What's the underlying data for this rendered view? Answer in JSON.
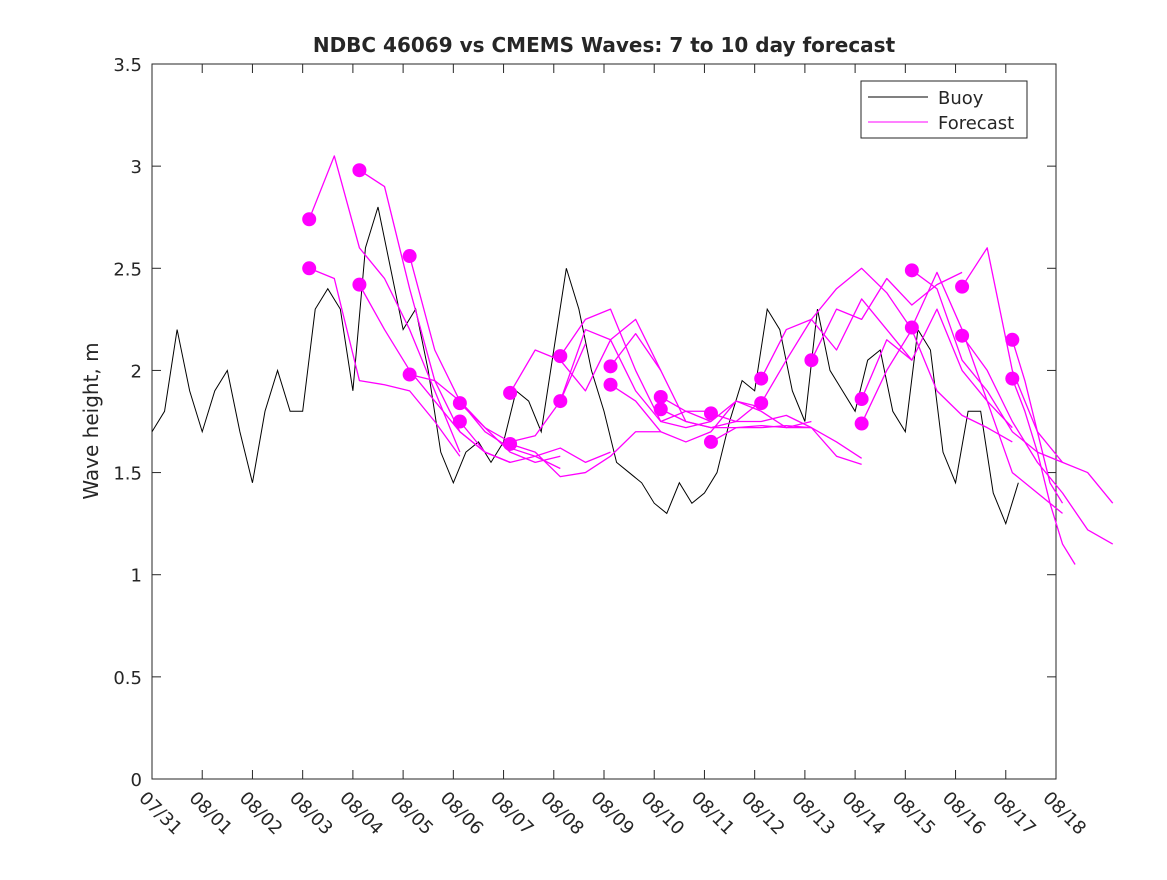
{
  "chart_data": {
    "type": "line",
    "title": "NDBC 46069 vs CMEMS Waves: 7 to 10 day forecast",
    "xlabel": "",
    "ylabel": "Wave height, m",
    "xlim": [
      0,
      18
    ],
    "ylim": [
      0,
      3.5
    ],
    "x_unit": "days since 07/31",
    "x_tick_labels": [
      "07/31",
      "08/01",
      "08/02",
      "08/03",
      "08/04",
      "08/05",
      "08/06",
      "08/07",
      "08/08",
      "08/09",
      "08/10",
      "08/11",
      "08/12",
      "08/13",
      "08/14",
      "08/15",
      "08/16",
      "08/17",
      "08/18"
    ],
    "y_ticks": [
      0,
      0.5,
      1,
      1.5,
      2,
      2.5,
      3,
      3.5
    ],
    "y_tick_labels": [
      "0",
      "0.5",
      "1",
      "1.5",
      "2",
      "2.5",
      "3",
      "3.5"
    ],
    "grid": false,
    "legend": {
      "placement": "top-right",
      "entries": [
        "Buoy",
        "Forecast"
      ]
    },
    "colors": {
      "buoy": "#000000",
      "forecast": "#ff00ff"
    },
    "buoy": {
      "x_start": 0,
      "x_step": 0.25,
      "values": [
        1.7,
        1.8,
        2.2,
        1.9,
        1.7,
        1.9,
        2.0,
        1.7,
        1.45,
        1.8,
        2.0,
        1.8,
        1.8,
        2.3,
        2.4,
        2.3,
        1.9,
        2.6,
        2.8,
        2.5,
        2.2,
        2.3,
        2.0,
        1.6,
        1.45,
        1.6,
        1.65,
        1.55,
        1.65,
        1.9,
        1.85,
        1.7,
        2.1,
        2.5,
        2.3,
        2.0,
        1.8,
        1.55,
        1.5,
        1.45,
        1.35,
        1.3,
        1.45,
        1.35,
        1.4,
        1.5,
        1.75,
        1.95,
        1.9,
        2.3,
        2.2,
        1.9,
        1.75,
        2.3,
        2.0,
        1.9,
        1.8,
        2.05,
        2.1,
        1.8,
        1.7,
        2.2,
        2.1,
        1.6,
        1.45,
        1.8,
        1.8,
        1.4,
        1.25,
        1.45
      ]
    },
    "forecasts": [
      {
        "start": 3.13,
        "step": 0.5,
        "values": [
          2.74,
          3.05,
          2.6,
          2.45,
          2.2,
          1.9,
          1.6
        ]
      },
      {
        "start": 3.13,
        "step": 0.5,
        "values": [
          2.5,
          2.45,
          1.95,
          1.93,
          1.9,
          1.75,
          1.58
        ]
      },
      {
        "start": 4.13,
        "step": 0.5,
        "values": [
          2.98,
          2.9,
          2.4,
          1.95,
          1.7,
          1.6,
          1.55
        ]
      },
      {
        "start": 4.13,
        "step": 0.5,
        "values": [
          2.42,
          2.2,
          2.0,
          1.85,
          1.7,
          1.6,
          1.55
        ]
      },
      {
        "start": 5.13,
        "step": 0.5,
        "values": [
          2.56,
          2.1,
          1.85,
          1.7,
          1.62,
          1.58,
          1.52
        ]
      },
      {
        "start": 5.13,
        "step": 0.5,
        "values": [
          1.98,
          1.95,
          1.85,
          1.72,
          1.6,
          1.55,
          1.58
        ]
      },
      {
        "start": 6.13,
        "step": 0.5,
        "values": [
          1.84,
          1.72,
          1.65,
          1.68,
          1.85,
          2.13
        ]
      },
      {
        "start": 6.13,
        "step": 0.5,
        "values": [
          1.75,
          1.6,
          1.55,
          1.58,
          1.62,
          1.55,
          1.6
        ]
      },
      {
        "start": 7.13,
        "step": 0.5,
        "values": [
          1.89,
          2.1,
          2.05,
          1.9,
          2.15,
          2.25,
          2.0
        ]
      },
      {
        "start": 7.13,
        "step": 0.5,
        "values": [
          1.64,
          1.6,
          1.48,
          1.5,
          1.58,
          1.7,
          1.7
        ]
      },
      {
        "start": 8.13,
        "step": 0.5,
        "values": [
          2.07,
          2.25,
          2.3,
          2.0,
          1.75,
          1.8,
          1.8
        ]
      },
      {
        "start": 8.13,
        "step": 0.5,
        "values": [
          1.85,
          2.2,
          2.15,
          1.9,
          1.75,
          1.72,
          1.75
        ]
      },
      {
        "start": 9.13,
        "step": 0.5,
        "values": [
          2.02,
          2.18,
          2.0,
          1.75,
          1.72,
          1.75,
          1.85
        ]
      },
      {
        "start": 9.13,
        "step": 0.5,
        "values": [
          1.93,
          1.85,
          1.7,
          1.65,
          1.7,
          1.85,
          1.82
        ]
      },
      {
        "start": 10.13,
        "step": 0.5,
        "values": [
          1.87,
          1.8,
          1.75,
          1.85,
          1.8,
          1.72,
          1.75
        ]
      },
      {
        "start": 10.13,
        "step": 0.5,
        "values": [
          1.81,
          1.75,
          1.72,
          1.72,
          1.73,
          1.72,
          1.72
        ]
      },
      {
        "start": 11.13,
        "step": 0.5,
        "values": [
          1.79,
          1.75,
          1.75,
          1.78,
          1.72,
          1.65,
          1.57
        ]
      },
      {
        "start": 11.13,
        "step": 0.5,
        "values": [
          1.65,
          1.72,
          1.72,
          1.73,
          1.72,
          1.58,
          1.54
        ]
      },
      {
        "start": 12.13,
        "step": 0.5,
        "values": [
          1.96,
          2.2,
          2.25,
          2.4,
          2.5,
          2.38,
          2.2
        ]
      },
      {
        "start": 12.13,
        "step": 0.5,
        "values": [
          1.84,
          2.05,
          2.25,
          2.1,
          2.35,
          2.2,
          2.05
        ]
      },
      {
        "start": 13.13,
        "step": 0.5,
        "values": [
          2.05,
          2.3,
          2.25,
          2.45,
          2.32,
          2.42,
          2.48
        ]
      },
      {
        "start": 14.13,
        "step": 0.5,
        "values": [
          1.86,
          2.15,
          2.05,
          2.3,
          2.0,
          1.85,
          1.72
        ]
      },
      {
        "start": 14.13,
        "step": 0.5,
        "values": [
          1.74,
          2.0,
          2.2,
          1.9,
          1.78,
          1.72,
          1.65
        ]
      },
      {
        "start": 15.13,
        "step": 0.5,
        "values": [
          2.49,
          2.4,
          2.05,
          1.9,
          1.7,
          1.6,
          1.55
        ]
      },
      {
        "start": 15.13,
        "step": 0.5,
        "values": [
          2.21,
          2.48,
          2.2,
          1.85,
          1.5,
          1.4,
          1.3
        ]
      },
      {
        "start": 16.13,
        "step": 0.5,
        "values": [
          2.41,
          2.6,
          2.0,
          1.7,
          1.55,
          1.5,
          1.35
        ]
      },
      {
        "start": 16.13,
        "step": 0.5,
        "values": [
          2.17,
          2.0,
          1.75,
          1.55,
          1.4,
          1.22,
          1.15
        ]
      },
      {
        "start": 17.13,
        "step": 0.25,
        "values": [
          2.15,
          1.95,
          1.7,
          1.45,
          1.35
        ]
      },
      {
        "start": 17.13,
        "step": 0.25,
        "values": [
          1.96,
          1.8,
          1.6,
          1.35,
          1.15,
          1.05
        ]
      }
    ]
  }
}
